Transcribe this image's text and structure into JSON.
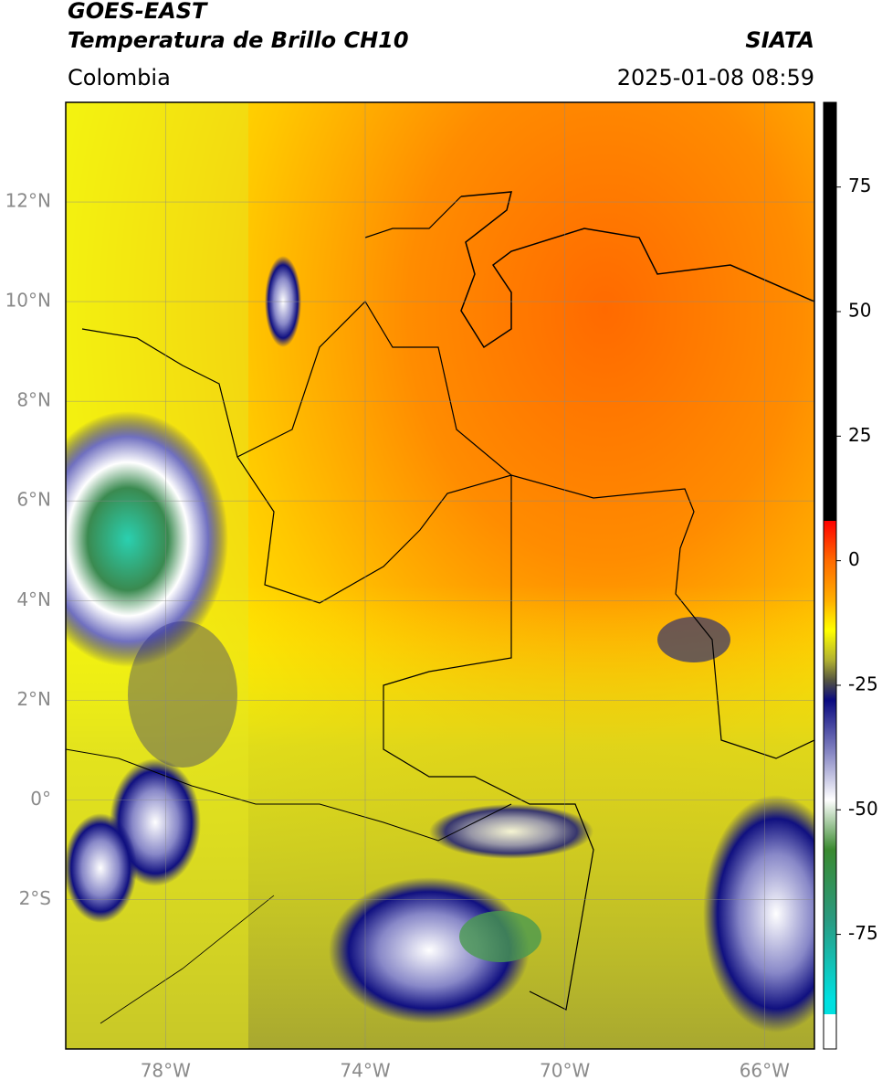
{
  "header": {
    "source": "GOES-EAST",
    "product": "Temperatura de Brillo CH10",
    "region": "Colombia",
    "agency": "SIATA",
    "datetime": "2025-01-08 08:59"
  },
  "map": {
    "xlim": [
      -80,
      -65
    ],
    "ylim": [
      -5,
      14
    ],
    "grid": true,
    "yticks": [
      {
        "value": 12,
        "label": "12°N"
      },
      {
        "value": 10,
        "label": "10°N"
      },
      {
        "value": 8,
        "label": "8°N"
      },
      {
        "value": 6,
        "label": "6°N"
      },
      {
        "value": 4,
        "label": "4°N"
      },
      {
        "value": 2,
        "label": "2°N"
      },
      {
        "value": 0,
        "label": "0°"
      },
      {
        "value": -2,
        "label": "2°S"
      }
    ],
    "xticks": [
      {
        "value": -78,
        "label": "78°W"
      },
      {
        "value": -74,
        "label": "74°W"
      },
      {
        "value": -70,
        "label": "70°W"
      },
      {
        "value": -66,
        "label": "66°W"
      }
    ]
  },
  "colorbar": {
    "lim": [
      -98,
      92
    ],
    "ticks": [
      75,
      50,
      25,
      0,
      -25,
      -50,
      -75
    ],
    "stops": [
      {
        "value": 92,
        "color": "#000000"
      },
      {
        "value": 8,
        "color": "#000000"
      },
      {
        "value": 8,
        "color": "#ff0000"
      },
      {
        "value": 0,
        "color": "#ff6a00"
      },
      {
        "value": -8,
        "color": "#ffb000"
      },
      {
        "value": -14,
        "color": "#ffff00"
      },
      {
        "value": -20,
        "color": "#b0b030"
      },
      {
        "value": -24,
        "color": "#555540"
      },
      {
        "value": -28,
        "color": "#0a0a80"
      },
      {
        "value": -38,
        "color": "#8080c0"
      },
      {
        "value": -48,
        "color": "#ffffff"
      },
      {
        "value": -58,
        "color": "#3a8a30"
      },
      {
        "value": -72,
        "color": "#2a9a80"
      },
      {
        "value": -88,
        "color": "#00e0e0"
      },
      {
        "value": -91,
        "color": "#00e0e0"
      },
      {
        "value": -91,
        "color": "#ffffff"
      },
      {
        "value": -98,
        "color": "#ffffff"
      }
    ]
  }
}
